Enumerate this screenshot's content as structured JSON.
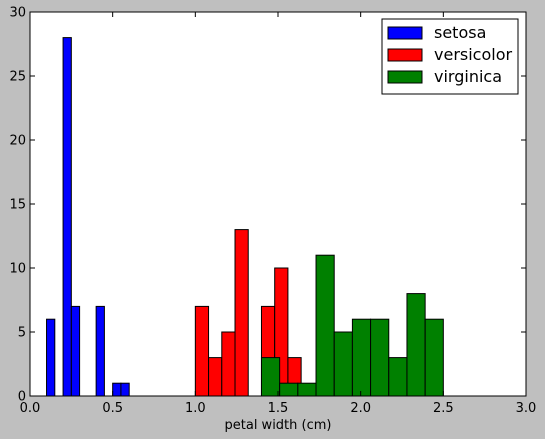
{
  "chart_data": {
    "type": "bar",
    "xlabel": "petal width (cm)",
    "ylabel": "",
    "xlim": [
      0,
      3.0
    ],
    "ylim": [
      0,
      30
    ],
    "xticks": [
      "0.0",
      "0.5",
      "1.0",
      "1.5",
      "2.0",
      "2.5",
      "3.0"
    ],
    "yticks": [
      "0",
      "5",
      "10",
      "15",
      "20",
      "25",
      "30"
    ],
    "legend_position": "top-right",
    "grid": false,
    "series": [
      {
        "name": "setosa",
        "color": "#0000ff",
        "bins": [
          {
            "x0": 0.1,
            "x1": 0.15,
            "count": 6
          },
          {
            "x0": 0.2,
            "x1": 0.25,
            "count": 28
          },
          {
            "x0": 0.25,
            "x1": 0.3,
            "count": 7
          },
          {
            "x0": 0.4,
            "x1": 0.45,
            "count": 7
          },
          {
            "x0": 0.5,
            "x1": 0.55,
            "count": 1
          },
          {
            "x0": 0.55,
            "x1": 0.6,
            "count": 1
          }
        ]
      },
      {
        "name": "versicolor",
        "color": "#ff0000",
        "bins": [
          {
            "x0": 1.0,
            "x1": 1.08,
            "count": 7
          },
          {
            "x0": 1.08,
            "x1": 1.16,
            "count": 3
          },
          {
            "x0": 1.16,
            "x1": 1.24,
            "count": 5
          },
          {
            "x0": 1.24,
            "x1": 1.32,
            "count": 13
          },
          {
            "x0": 1.4,
            "x1": 1.48,
            "count": 7
          },
          {
            "x0": 1.48,
            "x1": 1.56,
            "count": 10
          },
          {
            "x0": 1.56,
            "x1": 1.64,
            "count": 3
          }
        ]
      },
      {
        "name": "virginica",
        "color": "#008000",
        "bins": [
          {
            "x0": 1.4,
            "x1": 1.51,
            "count": 3
          },
          {
            "x0": 1.51,
            "x1": 1.62,
            "count": 1
          },
          {
            "x0": 1.62,
            "x1": 1.73,
            "count": 1
          },
          {
            "x0": 1.73,
            "x1": 1.84,
            "count": 11
          },
          {
            "x0": 1.84,
            "x1": 1.95,
            "count": 5
          },
          {
            "x0": 1.95,
            "x1": 2.06,
            "count": 6
          },
          {
            "x0": 2.06,
            "x1": 2.17,
            "count": 6
          },
          {
            "x0": 2.17,
            "x1": 2.28,
            "count": 3
          },
          {
            "x0": 2.28,
            "x1": 2.39,
            "count": 8
          },
          {
            "x0": 2.39,
            "x1": 2.5,
            "count": 6
          }
        ]
      }
    ]
  }
}
